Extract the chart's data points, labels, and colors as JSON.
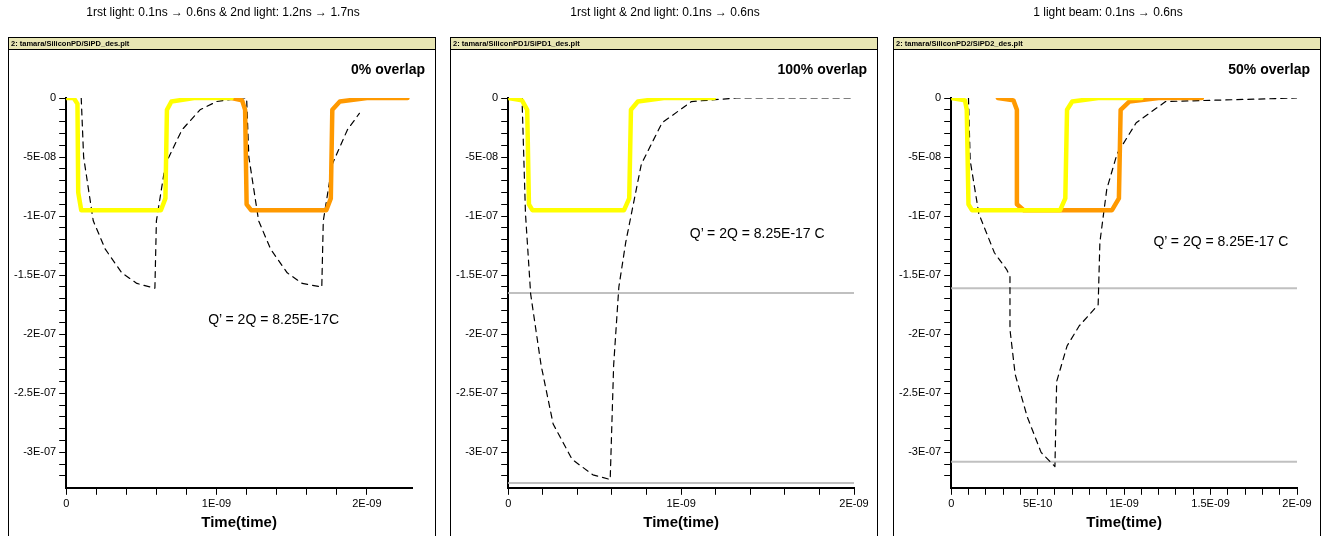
{
  "chart_data": [
    {
      "type": "line",
      "title": "1rst light: 0.1ns → 0.6ns & 2nd light: 1.2ns → 1.7ns",
      "subtitle": "2: tamara/SiliconPD/SiPD_des.plt",
      "xlabel": "Time(time)",
      "annotations": [
        "0% overlap",
        "Q’ = 2Q = 8.25E-17C"
      ],
      "xlim": [
        0,
        2.3e-09
      ],
      "xticks": [
        {
          "value": 0,
          "label": "0"
        },
        {
          "value": 2e-10,
          "label": null
        },
        {
          "value": 4e-10,
          "label": null
        },
        {
          "value": 6e-10,
          "label": null
        },
        {
          "value": 8e-10,
          "label": null
        },
        {
          "value": 1e-09,
          "label": "1E-09"
        },
        {
          "value": 1.2e-09,
          "label": null
        },
        {
          "value": 1.4e-09,
          "label": null
        },
        {
          "value": 1.6e-09,
          "label": null
        },
        {
          "value": 1.8e-09,
          "label": null
        },
        {
          "value": 2e-09,
          "label": "2E-09"
        }
      ],
      "ylim": [
        -3.3e-07,
        0
      ],
      "yticks": [
        {
          "value": 0,
          "label": "0"
        },
        {
          "value": -1e-08,
          "label": null
        },
        {
          "value": -2e-08,
          "label": null
        },
        {
          "value": -3e-08,
          "label": null
        },
        {
          "value": -4e-08,
          "label": null
        },
        {
          "value": -5e-08,
          "label": "-5E-08"
        },
        {
          "value": -6e-08,
          "label": null
        },
        {
          "value": -7e-08,
          "label": null
        },
        {
          "value": -8e-08,
          "label": null
        },
        {
          "value": -9e-08,
          "label": null
        },
        {
          "value": -1e-07,
          "label": "-1E-07"
        },
        {
          "value": -1.1e-07,
          "label": null
        },
        {
          "value": -1.2e-07,
          "label": null
        },
        {
          "value": -1.3e-07,
          "label": null
        },
        {
          "value": -1.4e-07,
          "label": null
        },
        {
          "value": -1.5e-07,
          "label": "-1.5E-07"
        },
        {
          "value": -1.6e-07,
          "label": null
        },
        {
          "value": -1.7e-07,
          "label": null
        },
        {
          "value": -1.8e-07,
          "label": null
        },
        {
          "value": -1.9e-07,
          "label": null
        },
        {
          "value": -2e-07,
          "label": "-2E-07"
        },
        {
          "value": -2.1e-07,
          "label": null
        },
        {
          "value": -2.2e-07,
          "label": null
        },
        {
          "value": -2.3e-07,
          "label": null
        },
        {
          "value": -2.4e-07,
          "label": null
        },
        {
          "value": -2.5e-07,
          "label": "-2.5E-07"
        },
        {
          "value": -2.6e-07,
          "label": null
        },
        {
          "value": -2.7e-07,
          "label": null
        },
        {
          "value": -2.8e-07,
          "label": null
        },
        {
          "value": -2.9e-07,
          "label": null
        },
        {
          "value": -3e-07,
          "label": "-3E-07"
        },
        {
          "value": -3.1e-07,
          "label": null
        },
        {
          "value": -3.2e-07,
          "label": null
        }
      ],
      "series": [
        {
          "color": "#ffff00",
          "x": [
            0,
            5e-11,
            7.5e-11,
            8e-11,
            1e-10,
            6.3e-10,
            6.6e-10,
            6.7e-10,
            7e-10,
            8.5e-10,
            1.1e-09
          ],
          "values": [
            0,
            0,
            -5e-09,
            -8e-08,
            -9.5e-08,
            -9.5e-08,
            -8.5e-08,
            -1e-08,
            -3e-09,
            0,
            0
          ]
        },
        {
          "color": "#ff9900",
          "x": [
            1.1e-09,
            1.17e-09,
            1.19e-09,
            1.2e-09,
            1.23e-09,
            1.73e-09,
            1.76e-09,
            1.77e-09,
            1.82e-09,
            2e-09,
            2.27e-09
          ],
          "values": [
            0,
            -2e-09,
            -1e-08,
            -9e-08,
            -9.5e-08,
            -9.5e-08,
            -8.5e-08,
            -1e-08,
            -3e-09,
            0,
            0
          ]
        },
        {
          "color": "#000000",
          "line_style": "dashed",
          "x": [
            1e-10,
            1.16e-10,
            1.8e-10,
            2.6e-10,
            3.7e-10,
            4.7e-10,
            5.9e-10,
            6e-10,
            6.6e-10,
            7.7e-10,
            8.9e-10,
            1e-09,
            1.17e-09,
            1.2e-09,
            1.215e-09,
            1.28e-09,
            1.36e-09,
            1.47e-09,
            1.57e-09,
            1.7e-09,
            1.71e-09,
            1.77e-09,
            1.87e-09,
            1.95e-09
          ],
          "values": [
            0,
            -5e-08,
            -1.04e-07,
            -1.28e-07,
            -1.48e-07,
            -1.57e-07,
            -1.61e-07,
            -1.04e-07,
            -5.6e-08,
            -2.7e-08,
            -1e-08,
            -3e-09,
            0,
            0,
            -5e-08,
            -1.04e-07,
            -1.28e-07,
            -1.48e-07,
            -1.57e-07,
            -1.6e-07,
            -1.04e-07,
            -5.6e-08,
            -2.7e-08,
            -1.3e-08
          ]
        }
      ]
    },
    {
      "type": "line",
      "title": "1rst light & 2nd light: 0.1ns → 0.6ns",
      "subtitle": "2: tamara/SiliconPD1/SiPD1_des.plt",
      "xlabel": "Time(time)",
      "annotations": [
        "100% overlap",
        "Q’ = 2Q = 8.25E-17 C"
      ],
      "xlim": [
        0,
        2e-09
      ],
      "xticks": [
        {
          "value": 0,
          "label": "0"
        },
        {
          "value": 2e-10,
          "label": null
        },
        {
          "value": 4e-10,
          "label": null
        },
        {
          "value": 6e-10,
          "label": null
        },
        {
          "value": 8e-10,
          "label": null
        },
        {
          "value": 1e-09,
          "label": "1E-09"
        },
        {
          "value": 1.2e-09,
          "label": null
        },
        {
          "value": 1.4e-09,
          "label": null
        },
        {
          "value": 1.6e-09,
          "label": null
        },
        {
          "value": 1.8e-09,
          "label": null
        },
        {
          "value": 2e-09,
          "label": "2E-09"
        }
      ],
      "ylim": [
        -3.3e-07,
        0
      ],
      "yticks": [
        {
          "value": 0,
          "label": "0"
        },
        {
          "value": -1e-08,
          "label": null
        },
        {
          "value": -2e-08,
          "label": null
        },
        {
          "value": -3e-08,
          "label": null
        },
        {
          "value": -4e-08,
          "label": null
        },
        {
          "value": -5e-08,
          "label": "-5E-08"
        },
        {
          "value": -6e-08,
          "label": null
        },
        {
          "value": -7e-08,
          "label": null
        },
        {
          "value": -8e-08,
          "label": null
        },
        {
          "value": -9e-08,
          "label": null
        },
        {
          "value": -1e-07,
          "label": "-1E-07"
        },
        {
          "value": -1.1e-07,
          "label": null
        },
        {
          "value": -1.2e-07,
          "label": null
        },
        {
          "value": -1.3e-07,
          "label": null
        },
        {
          "value": -1.4e-07,
          "label": null
        },
        {
          "value": -1.5e-07,
          "label": "-1.5E-07"
        },
        {
          "value": -1.6e-07,
          "label": null
        },
        {
          "value": -1.7e-07,
          "label": null
        },
        {
          "value": -1.8e-07,
          "label": null
        },
        {
          "value": -1.9e-07,
          "label": null
        },
        {
          "value": -2e-07,
          "label": "-2E-07"
        },
        {
          "value": -2.1e-07,
          "label": null
        },
        {
          "value": -2.2e-07,
          "label": null
        },
        {
          "value": -2.3e-07,
          "label": null
        },
        {
          "value": -2.4e-07,
          "label": null
        },
        {
          "value": -2.5e-07,
          "label": "-2.5E-07"
        },
        {
          "value": -2.6e-07,
          "label": null
        },
        {
          "value": -2.7e-07,
          "label": null
        },
        {
          "value": -2.8e-07,
          "label": null
        },
        {
          "value": -2.9e-07,
          "label": null
        },
        {
          "value": -3e-07,
          "label": "-3E-07"
        },
        {
          "value": -3.1e-07,
          "label": null
        },
        {
          "value": -3.2e-07,
          "label": null
        }
      ],
      "ref_lines": [
        {
          "axis": "y",
          "value": -1.65e-07,
          "color": "#c0c0c0"
        },
        {
          "axis": "y",
          "value": -3.26e-07,
          "color": "#c0c0c0"
        }
      ],
      "series": [
        {
          "color": "#ffff00",
          "x": [
            0,
            8e-11,
            1.1e-10,
            1.2e-10,
            1.4e-10,
            6.7e-10,
            7e-10,
            7.1e-10,
            7.5e-10,
            9e-10,
            1.19e-09
          ],
          "values": [
            0,
            -2e-09,
            -1e-08,
            -9e-08,
            -9.5e-08,
            -9.5e-08,
            -8.5e-08,
            -1e-08,
            -3e-09,
            0,
            0
          ]
        },
        {
          "color": "#000000",
          "line_style": "dashed",
          "x": [
            0,
            8e-11,
            1e-10,
            1.3e-10,
            1.9e-10,
            2.6e-10,
            3.7e-10,
            4.9e-10,
            5.9e-10,
            6.1e-10,
            6.4e-10,
            6.8e-10,
            7.7e-10,
            8.9e-10,
            1.06e-09,
            1.32e-09,
            1.98e-09
          ],
          "values": [
            0,
            0,
            -9.8e-08,
            -1.66e-07,
            -2.26e-07,
            -2.76e-07,
            -3.06e-07,
            -3.19e-07,
            -3.23e-07,
            -2.26e-07,
            -1.6e-07,
            -1.22e-07,
            -5.6e-08,
            -2.1e-08,
            -3e-09,
            0,
            0
          ]
        }
      ]
    },
    {
      "type": "line",
      "title": "1 light beam: 0.1ns → 0.6ns",
      "subtitle": "2: tamara/SiliconPD2/SiPD2_des.plt",
      "xlabel": "Time(time)",
      "annotations": [
        "50% overlap",
        "Q’ = 2Q = 8.25E-17 C"
      ],
      "xlim": [
        0,
        2e-09
      ],
      "xticks": [
        {
          "value": 0,
          "label": "0"
        },
        {
          "value": 1e-10,
          "label": null
        },
        {
          "value": 2e-10,
          "label": null
        },
        {
          "value": 3e-10,
          "label": null
        },
        {
          "value": 4e-10,
          "label": null
        },
        {
          "value": 5e-10,
          "label": "5E-10"
        },
        {
          "value": 6e-10,
          "label": null
        },
        {
          "value": 7e-10,
          "label": null
        },
        {
          "value": 8e-10,
          "label": null
        },
        {
          "value": 9e-10,
          "label": null
        },
        {
          "value": 1e-09,
          "label": "1E-09"
        },
        {
          "value": 1.1e-09,
          "label": null
        },
        {
          "value": 1.2e-09,
          "label": null
        },
        {
          "value": 1.3e-09,
          "label": null
        },
        {
          "value": 1.4e-09,
          "label": null
        },
        {
          "value": 1.5e-09,
          "label": "1.5E-09"
        },
        {
          "value": 1.6e-09,
          "label": null
        },
        {
          "value": 1.7e-09,
          "label": null
        },
        {
          "value": 1.8e-09,
          "label": null
        },
        {
          "value": 1.9e-09,
          "label": null
        },
        {
          "value": 2e-09,
          "label": "2E-09"
        }
      ],
      "ylim": [
        -3.3e-07,
        0
      ],
      "yticks": [
        {
          "value": 0,
          "label": "0"
        },
        {
          "value": -1e-08,
          "label": null
        },
        {
          "value": -2e-08,
          "label": null
        },
        {
          "value": -3e-08,
          "label": null
        },
        {
          "value": -4e-08,
          "label": null
        },
        {
          "value": -5e-08,
          "label": "-5E-08"
        },
        {
          "value": -6e-08,
          "label": null
        },
        {
          "value": -7e-08,
          "label": null
        },
        {
          "value": -8e-08,
          "label": null
        },
        {
          "value": -9e-08,
          "label": null
        },
        {
          "value": -1e-07,
          "label": "-1E-07"
        },
        {
          "value": -1.1e-07,
          "label": null
        },
        {
          "value": -1.2e-07,
          "label": null
        },
        {
          "value": -1.3e-07,
          "label": null
        },
        {
          "value": -1.4e-07,
          "label": null
        },
        {
          "value": -1.5e-07,
          "label": "-1.5E-07"
        },
        {
          "value": -1.6e-07,
          "label": null
        },
        {
          "value": -1.7e-07,
          "label": null
        },
        {
          "value": -1.8e-07,
          "label": null
        },
        {
          "value": -1.9e-07,
          "label": null
        },
        {
          "value": -2e-07,
          "label": "-2E-07"
        },
        {
          "value": -2.1e-07,
          "label": null
        },
        {
          "value": -2.2e-07,
          "label": null
        },
        {
          "value": -2.3e-07,
          "label": null
        },
        {
          "value": -2.4e-07,
          "label": null
        },
        {
          "value": -2.5e-07,
          "label": "-2.5E-07"
        },
        {
          "value": -2.6e-07,
          "label": null
        },
        {
          "value": -2.7e-07,
          "label": null
        },
        {
          "value": -2.8e-07,
          "label": null
        },
        {
          "value": -2.9e-07,
          "label": null
        },
        {
          "value": -3e-07,
          "label": "-3E-07"
        },
        {
          "value": -3.1e-07,
          "label": null
        },
        {
          "value": -3.2e-07,
          "label": null
        }
      ],
      "ref_lines": [
        {
          "axis": "y",
          "value": -1.61e-07,
          "color": "#c0c0c0"
        },
        {
          "axis": "y",
          "value": -3.08e-07,
          "color": "#c0c0c0"
        }
      ],
      "series": [
        {
          "color": "#ffff00",
          "x": [
            0,
            8e-11,
            9e-11,
            1e-10,
            1.2e-10,
            6.3e-10,
            6.6e-10,
            6.7e-10,
            7e-10,
            8.5e-10,
            1.1e-09
          ],
          "values": [
            0,
            -2e-09,
            -1e-08,
            -9e-08,
            -9.5e-08,
            -9.5e-08,
            -8.5e-08,
            -1e-08,
            -3e-09,
            0,
            0
          ]
        },
        {
          "color": "#ff9900",
          "x": [
            2.7e-10,
            3.6e-10,
            3.8e-10,
            3.8e-10,
            4.2e-10,
            9.3e-10,
            9.7e-10,
            9.8e-10,
            1.03e-09,
            1.2e-09,
            1.45e-09
          ],
          "values": [
            0,
            -2e-09,
            -1e-08,
            -9e-08,
            -9.5e-08,
            -9.5e-08,
            -8.5e-08,
            -1e-08,
            -3e-09,
            0,
            0
          ]
        },
        {
          "color": "#000000",
          "line_style": "dashed",
          "x": [
            1e-10,
            1.1e-10,
            1.6e-10,
            2.5e-10,
            3.2e-10,
            3.4e-10,
            3.4e-10,
            3.7e-10,
            4.4e-10,
            5.2e-10,
            6e-10,
            6.1e-10,
            6.7e-10,
            7.4e-10,
            8.5e-10,
            8.6e-10,
            9e-10,
            9.6e-10,
            1.07e-09,
            1.24e-09,
            2e-09
          ],
          "values": [
            0,
            -5.3e-08,
            -9.8e-08,
            -1.31e-07,
            -1.45e-07,
            -1.51e-07,
            -1.96e-07,
            -2.34e-07,
            -2.7e-07,
            -3e-07,
            -3.12e-07,
            -2.4e-07,
            -2.1e-07,
            -1.93e-07,
            -1.75e-07,
            -1.22e-07,
            -7.7e-08,
            -4.7e-08,
            -2.1e-08,
            -3e-09,
            0
          ]
        }
      ]
    }
  ]
}
